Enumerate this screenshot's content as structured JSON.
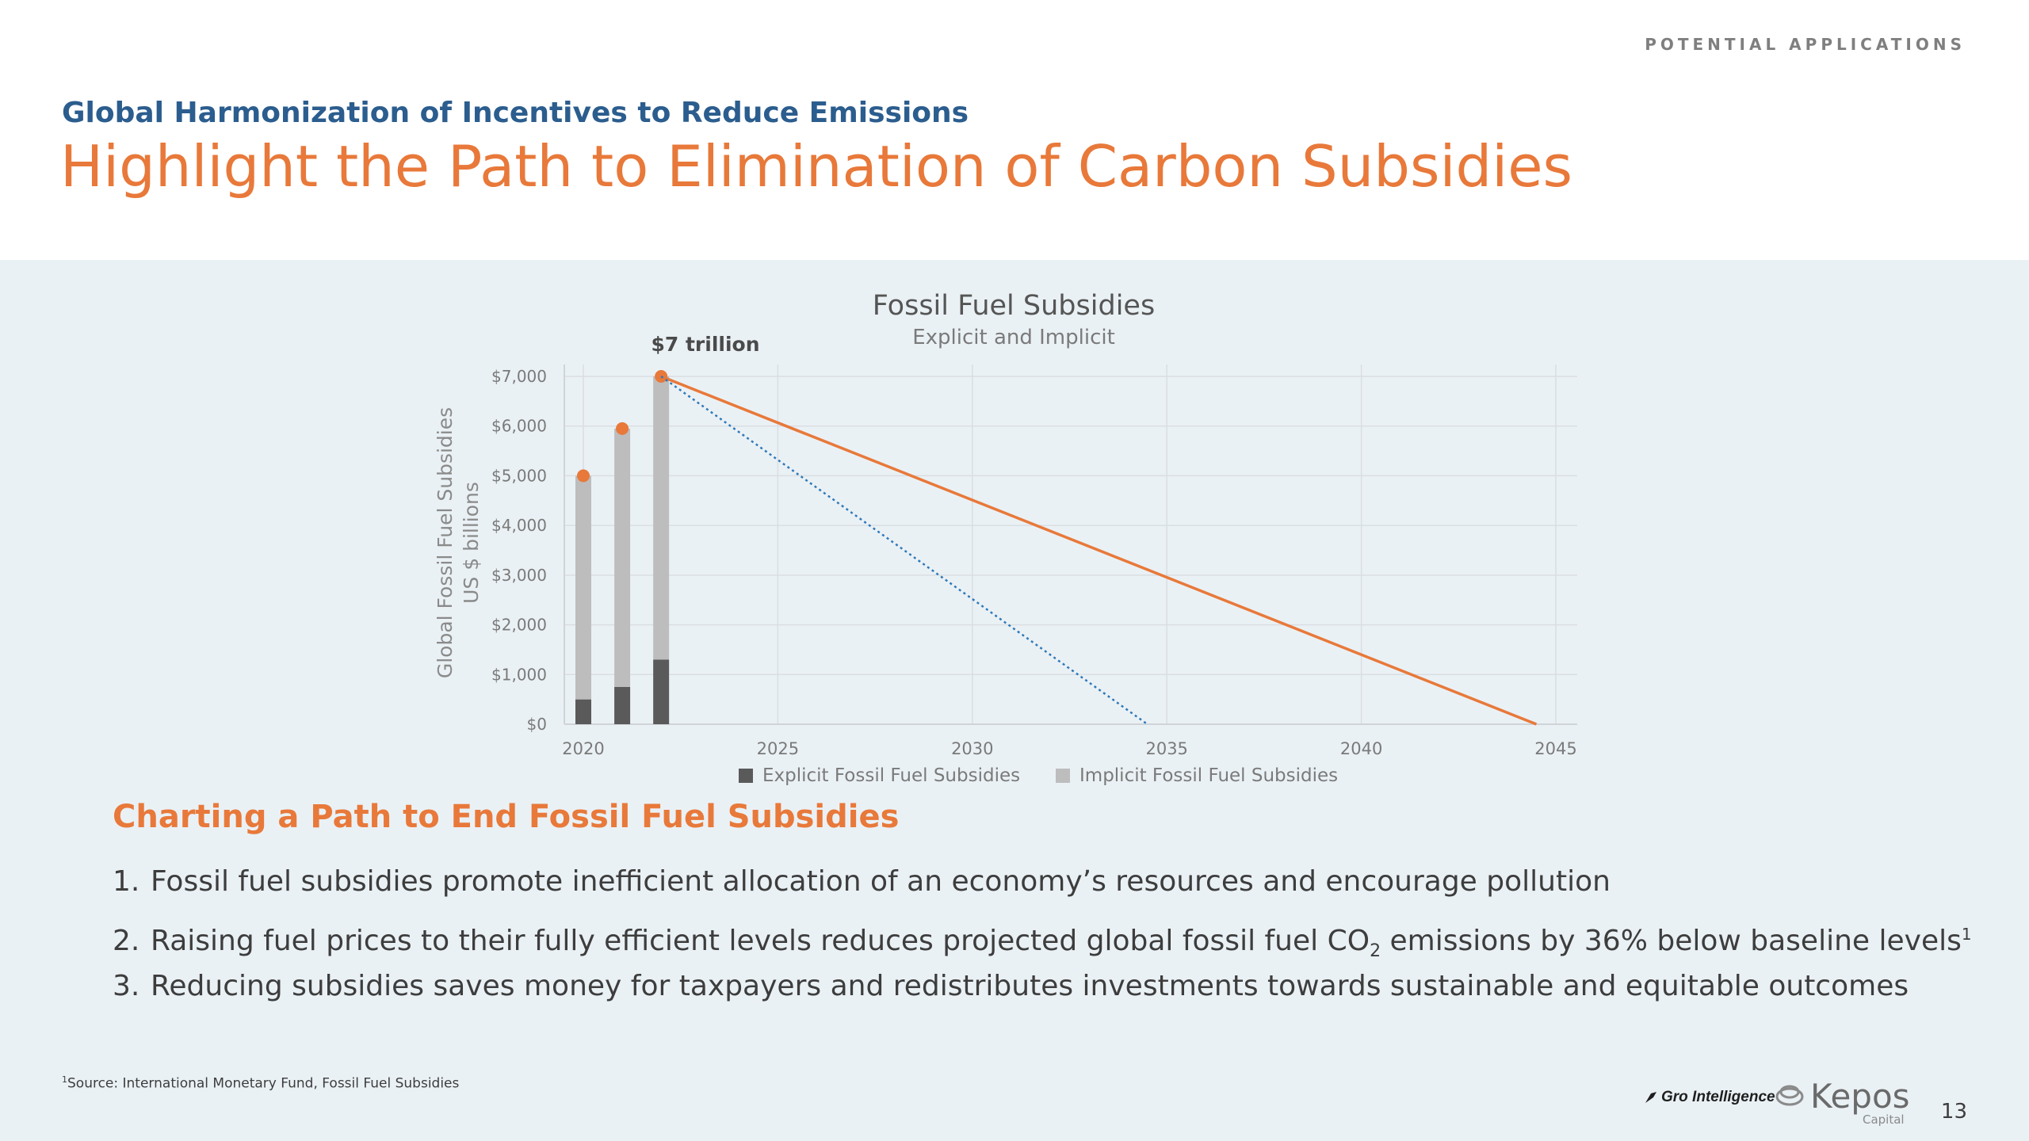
{
  "header": {
    "section_tag": "POTENTIAL APPLICATIONS",
    "kicker": "Global Harmonization of Incentives to Reduce Emissions",
    "title": "Highlight the Path to Elimination of Carbon Subsidies"
  },
  "chart_data": {
    "type": "bar",
    "title": "Fossil Fuel Subsidies",
    "subtitle": "Explicit and Implicit",
    "ylabel": "Global Fossil Fuel Subsidies",
    "ylabel2": "US $ billions",
    "annotation": "$7 trillion",
    "xlim": [
      2020,
      2045
    ],
    "ylim": [
      0,
      7000
    ],
    "x_ticks": [
      "2020",
      "2025",
      "2030",
      "2035",
      "2040",
      "2045"
    ],
    "y_ticks": [
      "$0",
      "$1,000",
      "$2,000",
      "$3,000",
      "$4,000",
      "$5,000",
      "$6,000",
      "$7,000"
    ],
    "categories": [
      2020,
      2021,
      2022
    ],
    "series": [
      {
        "name": "Explicit Fossil Fuel Subsidies",
        "color": "#5a5a5a",
        "values": [
          500,
          750,
          1300
        ]
      },
      {
        "name": "Implicit Fossil Fuel Subsidies",
        "color": "#bdbdbd",
        "values": [
          4500,
          5200,
          5700
        ]
      }
    ],
    "totals": [
      5000,
      5950,
      7000
    ],
    "paths": [
      {
        "style": "solid",
        "color": "#e8793a",
        "points": [
          [
            2022,
            7000
          ],
          [
            2044.5,
            0
          ]
        ]
      },
      {
        "style": "dotted",
        "color": "#2e79b9",
        "points": [
          [
            2022,
            7000
          ],
          [
            2034.5,
            0
          ]
        ]
      }
    ],
    "grid": true,
    "legend": "bottom"
  },
  "body": {
    "subheading": "Charting a Path to End Fossil Fuel Subsidies",
    "points": [
      {
        "num": "1.",
        "text": "Fossil fuel subsidies promote inefficient allocation of an economy’s resources and encourage pollution"
      },
      {
        "num": "2.",
        "before": "Raising fuel prices to their fully efficient levels reduces projected global fossil fuel CO",
        "sub": "2",
        "after": " emissions by 36% below baseline levels",
        "sup": "1"
      },
      {
        "num": "3.",
        "text": "Reducing subsidies saves money for taxpayers and redistributes investments towards sustainable and equitable outcomes"
      }
    ]
  },
  "footer": {
    "footnote_mark": "1",
    "footnote": "Source: International Monetary Fund, Fossil Fuel Subsidies",
    "logo_gro": "Gro Intelligence",
    "logo_kepos": "Kepos",
    "logo_kepos_sub": "Capital",
    "page": "13"
  },
  "icons": {
    "gro": "gro-leaf-icon",
    "kepos": "kepos-shell-icon"
  }
}
